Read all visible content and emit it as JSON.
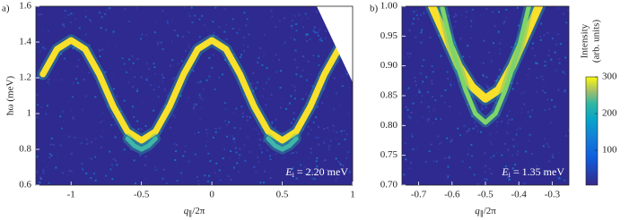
{
  "chart_data": [
    {
      "type": "spectrum",
      "panel_label": "a)",
      "xlabel": {
        "symbol": "q",
        "sub": "∥",
        "text": "/2π"
      },
      "ylabel": "ħω (meV)",
      "annotation": {
        "symbol": "E",
        "sub": "i",
        "text": " = 2.20 meV"
      },
      "xlim": [
        -1.25,
        1
      ],
      "ylim": [
        0.6,
        1.6
      ],
      "xticks": [
        -1,
        -0.5,
        0,
        0.5,
        1
      ],
      "yticks": [
        0.6,
        0.8,
        1,
        1.2,
        1.4,
        1.6
      ],
      "background": "#2e2a8f",
      "series": [
        {
          "color": "#f9e02a",
          "x": [
            -1.2,
            -1.1,
            -1.0,
            -0.9,
            -0.8,
            -0.7,
            -0.6,
            -0.5,
            -0.4,
            -0.3,
            -0.2,
            -0.1,
            0,
            0.1,
            0.2,
            0.3,
            0.4,
            0.5,
            0.6,
            0.7,
            0.8,
            0.9
          ],
          "values": [
            1.22,
            1.36,
            1.41,
            1.36,
            1.22,
            1.04,
            0.9,
            0.85,
            0.9,
            1.04,
            1.22,
            1.36,
            1.41,
            1.36,
            1.22,
            1.04,
            0.9,
            0.85,
            0.9,
            1.04,
            1.22,
            1.36
          ]
        },
        {
          "color": "#3fb6a8",
          "x": [
            -0.6,
            -0.55,
            -0.5,
            -0.45,
            -0.4
          ],
          "values": [
            0.86,
            0.82,
            0.8,
            0.82,
            0.86
          ]
        },
        {
          "color": "#3fb6a8",
          "x": [
            0.4,
            0.45,
            0.5,
            0.55,
            0.6
          ],
          "values": [
            0.86,
            0.82,
            0.8,
            0.82,
            0.86
          ]
        }
      ]
    },
    {
      "type": "spectrum",
      "panel_label": "b)",
      "xlabel": {
        "symbol": "q",
        "sub": "∥",
        "text": "/2π"
      },
      "annotation": {
        "symbol": "E",
        "sub": "i",
        "text": " = 1.35 meV"
      },
      "xlim": [
        -0.75,
        -0.25
      ],
      "ylim": [
        0.7,
        1.0
      ],
      "xticks": [
        -0.7,
        -0.6,
        -0.5,
        -0.4,
        -0.3
      ],
      "yticks": [
        {
          "value": 0.7,
          "label": "0.70"
        },
        {
          "value": 0.75,
          "label": "0.75"
        },
        {
          "value": 0.8,
          "label": "0.80"
        },
        {
          "value": 0.85,
          "label": "0.85"
        },
        {
          "value": 0.9,
          "label": "0.90"
        },
        {
          "value": 0.95,
          "label": "0.95"
        },
        {
          "value": 1.0,
          "label": "1.00"
        }
      ],
      "background": "#2e2a8f",
      "series": [
        {
          "color": "#f9e02a",
          "x": [
            -0.66,
            -0.62,
            -0.58,
            -0.54,
            -0.5,
            -0.46,
            -0.42,
            -0.38,
            -0.34
          ],
          "values": [
            1.0,
            0.95,
            0.9,
            0.865,
            0.845,
            0.86,
            0.9,
            0.95,
            1.0
          ]
        },
        {
          "color": "#7fd46a",
          "x": [
            -0.63,
            -0.6,
            -0.56,
            -0.53,
            -0.5,
            -0.47,
            -0.44,
            -0.4,
            -0.37
          ],
          "values": [
            1.0,
            0.93,
            0.86,
            0.82,
            0.805,
            0.82,
            0.86,
            0.93,
            1.0
          ]
        }
      ],
      "colorbar": {
        "label": [
          "Intensity",
          "(arb. units)"
        ],
        "lim": [
          5,
          300
        ],
        "ticks": [
          100,
          200,
          300
        ]
      }
    }
  ]
}
